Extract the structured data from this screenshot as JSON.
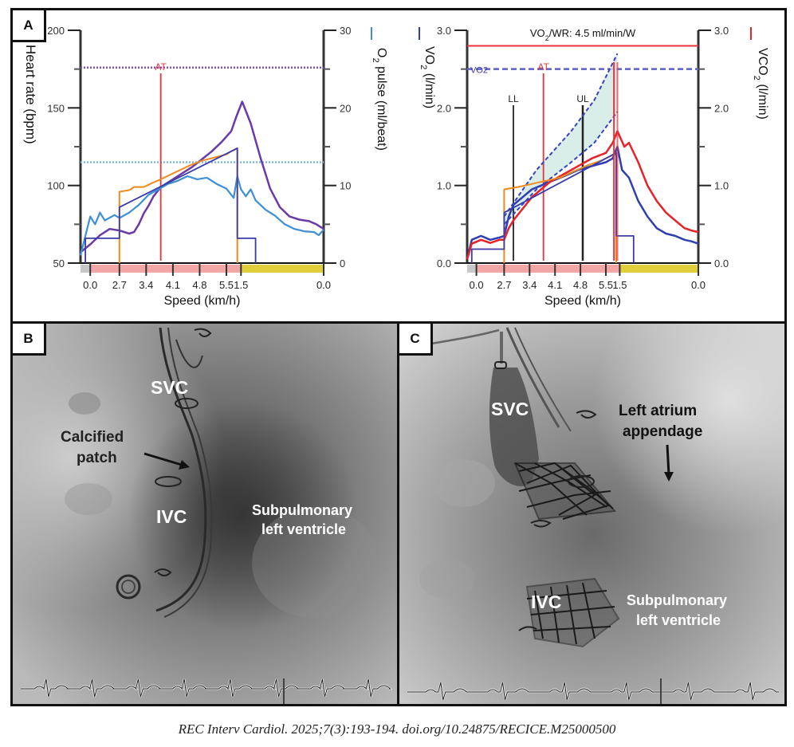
{
  "figure": {
    "panels": {
      "a": {
        "label": "A"
      },
      "b": {
        "label": "B",
        "annotations": {
          "svc": "SVC",
          "calcified_patch_line1": "Calcified",
          "calcified_patch_line2": "patch",
          "ivc": "IVC",
          "subpulmonary_line1": "Subpulmonary",
          "subpulmonary_line2": "left ventricle"
        }
      },
      "c": {
        "label": "C",
        "annotations": {
          "svc": "SVC",
          "left_atrium_line1": "Left atrium",
          "left_atrium_line2": "appendage",
          "ivc": "IVC",
          "subpulmonary_line1": "Subpulmonary",
          "subpulmonary_line2": "left ventricle"
        }
      }
    },
    "citation": "REC Interv Cardiol. 2025;7(3):193-194. doi.org/10.24875/RECICE.M25000500"
  },
  "colors": {
    "heart_rate": "#6a3aa8",
    "o2_pulse": "#3d8fd6",
    "speed_step": "#f08a1c",
    "workload": "#3a3aa8",
    "vo2": "#2f3fb0",
    "vco2": "#e8222a",
    "at_line": "#e8333a",
    "rest_bar": "#c8c8c8",
    "exercise_bar": "#f2a6a6",
    "recovery_bar": "#e0cf3a",
    "ci_fill": "#cfe8e4"
  },
  "chart_data": [
    {
      "type": "line",
      "title": "",
      "xlabel": "Speed (km/h)",
      "x_tick_labels": [
        "0.0",
        "2.7",
        "3.4",
        "4.1",
        "4.8",
        "5.5",
        "1.5",
        "0.0"
      ],
      "y_left": {
        "label": "Heart rate (bpm)",
        "ticks": [
          "50",
          "100",
          "150",
          "200"
        ],
        "range": [
          50,
          200
        ]
      },
      "y_right": {
        "label": "O2 pulse (ml/beat)",
        "label_main": "O",
        "label_sub": "2",
        "label_rest": " pulse (ml/beat)",
        "ticks": [
          "0",
          "10",
          "20",
          "30"
        ],
        "range": [
          0,
          30
        ]
      },
      "annotations": [
        {
          "label": "AT",
          "x_time": 0.33
        }
      ],
      "reference_lines": [
        {
          "name": "predicted max heart rate",
          "axis": "left",
          "value": 176
        },
        {
          "name": "predicted O2 pulse",
          "axis": "right",
          "value": 13
        }
      ],
      "phases": [
        {
          "name": "rest",
          "start": 0,
          "end": 0.04
        },
        {
          "name": "exercise",
          "start": 0.04,
          "end": 0.66
        },
        {
          "name": "recovery",
          "start": 0.66,
          "end": 1.0
        }
      ],
      "series": [
        {
          "name": "Heart rate",
          "axis": "left",
          "points": [
            [
              0.0,
              57
            ],
            [
              0.04,
              62
            ],
            [
              0.08,
              68
            ],
            [
              0.12,
              72
            ],
            [
              0.16,
              71
            ],
            [
              0.2,
              69
            ],
            [
              0.22,
              70
            ],
            [
              0.24,
              75
            ],
            [
              0.26,
              82
            ],
            [
              0.28,
              87
            ],
            [
              0.3,
              93
            ],
            [
              0.32,
              97
            ],
            [
              0.34,
              100
            ],
            [
              0.38,
              104
            ],
            [
              0.42,
              108
            ],
            [
              0.46,
              112
            ],
            [
              0.5,
              117
            ],
            [
              0.54,
              122
            ],
            [
              0.58,
              128
            ],
            [
              0.62,
              135
            ],
            [
              0.64,
              144
            ],
            [
              0.665,
              154
            ],
            [
              0.7,
              140
            ],
            [
              0.74,
              118
            ],
            [
              0.78,
              98
            ],
            [
              0.82,
              86
            ],
            [
              0.86,
              80
            ],
            [
              0.9,
              78
            ],
            [
              0.94,
              77
            ],
            [
              0.97,
              75
            ],
            [
              1.0,
              72
            ]
          ]
        },
        {
          "name": "O2 pulse",
          "axis": "right",
          "points": [
            [
              0.0,
              1.0
            ],
            [
              0.02,
              3.5
            ],
            [
              0.04,
              6.0
            ],
            [
              0.06,
              5.0
            ],
            [
              0.08,
              6.5
            ],
            [
              0.1,
              5.5
            ],
            [
              0.14,
              6.2
            ],
            [
              0.16,
              5.8
            ],
            [
              0.2,
              6.5
            ],
            [
              0.24,
              7.5
            ],
            [
              0.28,
              8.8
            ],
            [
              0.32,
              9.5
            ],
            [
              0.36,
              10.2
            ],
            [
              0.4,
              10.6
            ],
            [
              0.44,
              11.2
            ],
            [
              0.48,
              10.8
            ],
            [
              0.52,
              11.0
            ],
            [
              0.56,
              10.2
            ],
            [
              0.6,
              9.6
            ],
            [
              0.63,
              8.4
            ],
            [
              0.645,
              11.2
            ],
            [
              0.66,
              9.5
            ],
            [
              0.68,
              8.6
            ],
            [
              0.7,
              9.5
            ],
            [
              0.72,
              8.1
            ],
            [
              0.76,
              6.9
            ],
            [
              0.8,
              6.1
            ],
            [
              0.84,
              5.0
            ],
            [
              0.88,
              4.4
            ],
            [
              0.92,
              4.1
            ],
            [
              0.96,
              4.0
            ],
            [
              0.98,
              3.6
            ],
            [
              1.0,
              4.3
            ]
          ]
        },
        {
          "name": "Speed step",
          "axis": "left",
          "points": [
            [
              0.16,
              50
            ],
            [
              0.16,
              96
            ],
            [
              0.2,
              97
            ],
            [
              0.22,
              99
            ],
            [
              0.26,
              99
            ],
            [
              0.3,
              102
            ],
            [
              0.33,
              104
            ],
            [
              0.37,
              107
            ],
            [
              0.41,
              110
            ],
            [
              0.45,
              113
            ],
            [
              0.5,
              116
            ],
            [
              0.55,
              118
            ],
            [
              0.6,
              120
            ],
            [
              0.62,
              122
            ],
            [
              0.645,
              124
            ],
            [
              0.645,
              50
            ]
          ]
        },
        {
          "name": "Workload",
          "axis": "left",
          "points": [
            [
              0.02,
              50
            ],
            [
              0.02,
              66
            ],
            [
              0.16,
              66
            ],
            [
              0.16,
              86
            ],
            [
              0.645,
              124
            ],
            [
              0.645,
              66
            ],
            [
              0.72,
              66
            ],
            [
              0.72,
              50
            ]
          ]
        }
      ]
    },
    {
      "type": "line",
      "title": "VO2/WR: 4.5 ml/min/W",
      "title_main": "VO",
      "title_sub": "2",
      "title_rest": "/WR: 4.5 ml/min/W",
      "xlabel": "Speed (km/h)",
      "x_tick_labels": [
        "0.0",
        "2.7",
        "3.4",
        "4.1",
        "4.8",
        "5.5",
        "1.5",
        "0.0"
      ],
      "y_left": {
        "label": "VO2 (l/min)",
        "label_main": "VO",
        "label_sub": "2",
        "label_rest": " (l/min)",
        "ticks": [
          "0.0",
          "1.0",
          "2.0",
          "3.0"
        ],
        "range": [
          0,
          3
        ]
      },
      "y_right": {
        "label": "VCO2 (l/min)",
        "label_main": "VCO",
        "label_sub": "2",
        "label_rest": " (l/min)",
        "ticks": [
          "0.0",
          "1.0",
          "2.0",
          "3.0"
        ],
        "range": [
          0,
          3
        ]
      },
      "annotations": [
        {
          "label": "AT",
          "x_time": 0.33
        },
        {
          "label": "LL",
          "x_time": 0.2
        },
        {
          "label": "UL",
          "x_time": 0.5
        },
        {
          "label": "VO2",
          "x_time": 0.0
        }
      ],
      "reference_lines": [
        {
          "name": "VO2/WR reference",
          "axis": "left",
          "value": 2.8
        },
        {
          "name": "predicted VO2",
          "axis": "left",
          "value": 2.5
        }
      ],
      "phases": [
        {
          "name": "rest",
          "start": 0,
          "end": 0.04
        },
        {
          "name": "exercise",
          "start": 0.04,
          "end": 0.66
        },
        {
          "name": "recovery",
          "start": 0.66,
          "end": 1.0
        }
      ],
      "series": [
        {
          "name": "VO2",
          "axis": "left",
          "points": [
            [
              0.0,
              0.05
            ],
            [
              0.02,
              0.3
            ],
            [
              0.06,
              0.35
            ],
            [
              0.1,
              0.3
            ],
            [
              0.14,
              0.33
            ],
            [
              0.16,
              0.35
            ],
            [
              0.18,
              0.6
            ],
            [
              0.2,
              0.75
            ],
            [
              0.24,
              0.85
            ],
            [
              0.28,
              0.95
            ],
            [
              0.32,
              1.0
            ],
            [
              0.36,
              1.05
            ],
            [
              0.42,
              1.12
            ],
            [
              0.48,
              1.2
            ],
            [
              0.54,
              1.25
            ],
            [
              0.6,
              1.3
            ],
            [
              0.63,
              1.35
            ],
            [
              0.65,
              1.5
            ],
            [
              0.67,
              1.2
            ],
            [
              0.7,
              1.1
            ],
            [
              0.74,
              0.8
            ],
            [
              0.78,
              0.6
            ],
            [
              0.82,
              0.45
            ],
            [
              0.86,
              0.38
            ],
            [
              0.9,
              0.35
            ],
            [
              0.94,
              0.3
            ],
            [
              0.97,
              0.28
            ],
            [
              1.0,
              0.25
            ]
          ]
        },
        {
          "name": "VCO2",
          "axis": "right",
          "points": [
            [
              0.0,
              0.05
            ],
            [
              0.02,
              0.25
            ],
            [
              0.06,
              0.3
            ],
            [
              0.1,
              0.26
            ],
            [
              0.14,
              0.3
            ],
            [
              0.16,
              0.3
            ],
            [
              0.18,
              0.45
            ],
            [
              0.2,
              0.55
            ],
            [
              0.24,
              0.7
            ],
            [
              0.28,
              0.85
            ],
            [
              0.32,
              0.95
            ],
            [
              0.36,
              1.05
            ],
            [
              0.42,
              1.15
            ],
            [
              0.48,
              1.25
            ],
            [
              0.54,
              1.35
            ],
            [
              0.6,
              1.42
            ],
            [
              0.63,
              1.55
            ],
            [
              0.65,
              1.7
            ],
            [
              0.68,
              1.5
            ],
            [
              0.7,
              1.55
            ],
            [
              0.74,
              1.3
            ],
            [
              0.78,
              1.0
            ],
            [
              0.82,
              0.8
            ],
            [
              0.86,
              0.65
            ],
            [
              0.9,
              0.55
            ],
            [
              0.94,
              0.45
            ],
            [
              0.97,
              0.42
            ],
            [
              1.0,
              0.4
            ]
          ]
        },
        {
          "name": "Predicted VO2 upper",
          "axis": "left",
          "points": [
            [
              0.16,
              0.6
            ],
            [
              0.3,
              1.2
            ],
            [
              0.45,
              1.7
            ],
            [
              0.55,
              2.1
            ],
            [
              0.65,
              2.7
            ]
          ]
        },
        {
          "name": "Predicted VO2 lower",
          "axis": "left",
          "points": [
            [
              0.16,
              0.5
            ],
            [
              0.3,
              0.95
            ],
            [
              0.45,
              1.3
            ],
            [
              0.55,
              1.55
            ],
            [
              0.65,
              1.95
            ]
          ]
        },
        {
          "name": "Speed step",
          "axis": "left",
          "points": [
            [
              0.16,
              0.0
            ],
            [
              0.16,
              0.95
            ],
            [
              0.22,
              0.98
            ],
            [
              0.28,
              1.02
            ],
            [
              0.34,
              1.06
            ],
            [
              0.4,
              1.1
            ],
            [
              0.46,
              1.18
            ],
            [
              0.52,
              1.26
            ],
            [
              0.58,
              1.32
            ],
            [
              0.62,
              1.38
            ],
            [
              0.645,
              1.42
            ],
            [
              0.645,
              0.0
            ]
          ]
        },
        {
          "name": "Workload",
          "axis": "left",
          "points": [
            [
              0.02,
              0.0
            ],
            [
              0.02,
              0.18
            ],
            [
              0.16,
              0.18
            ],
            [
              0.16,
              0.65
            ],
            [
              0.645,
              1.42
            ],
            [
              0.645,
              0.35
            ],
            [
              0.72,
              0.35
            ],
            [
              0.72,
              0.0
            ]
          ]
        }
      ]
    }
  ]
}
